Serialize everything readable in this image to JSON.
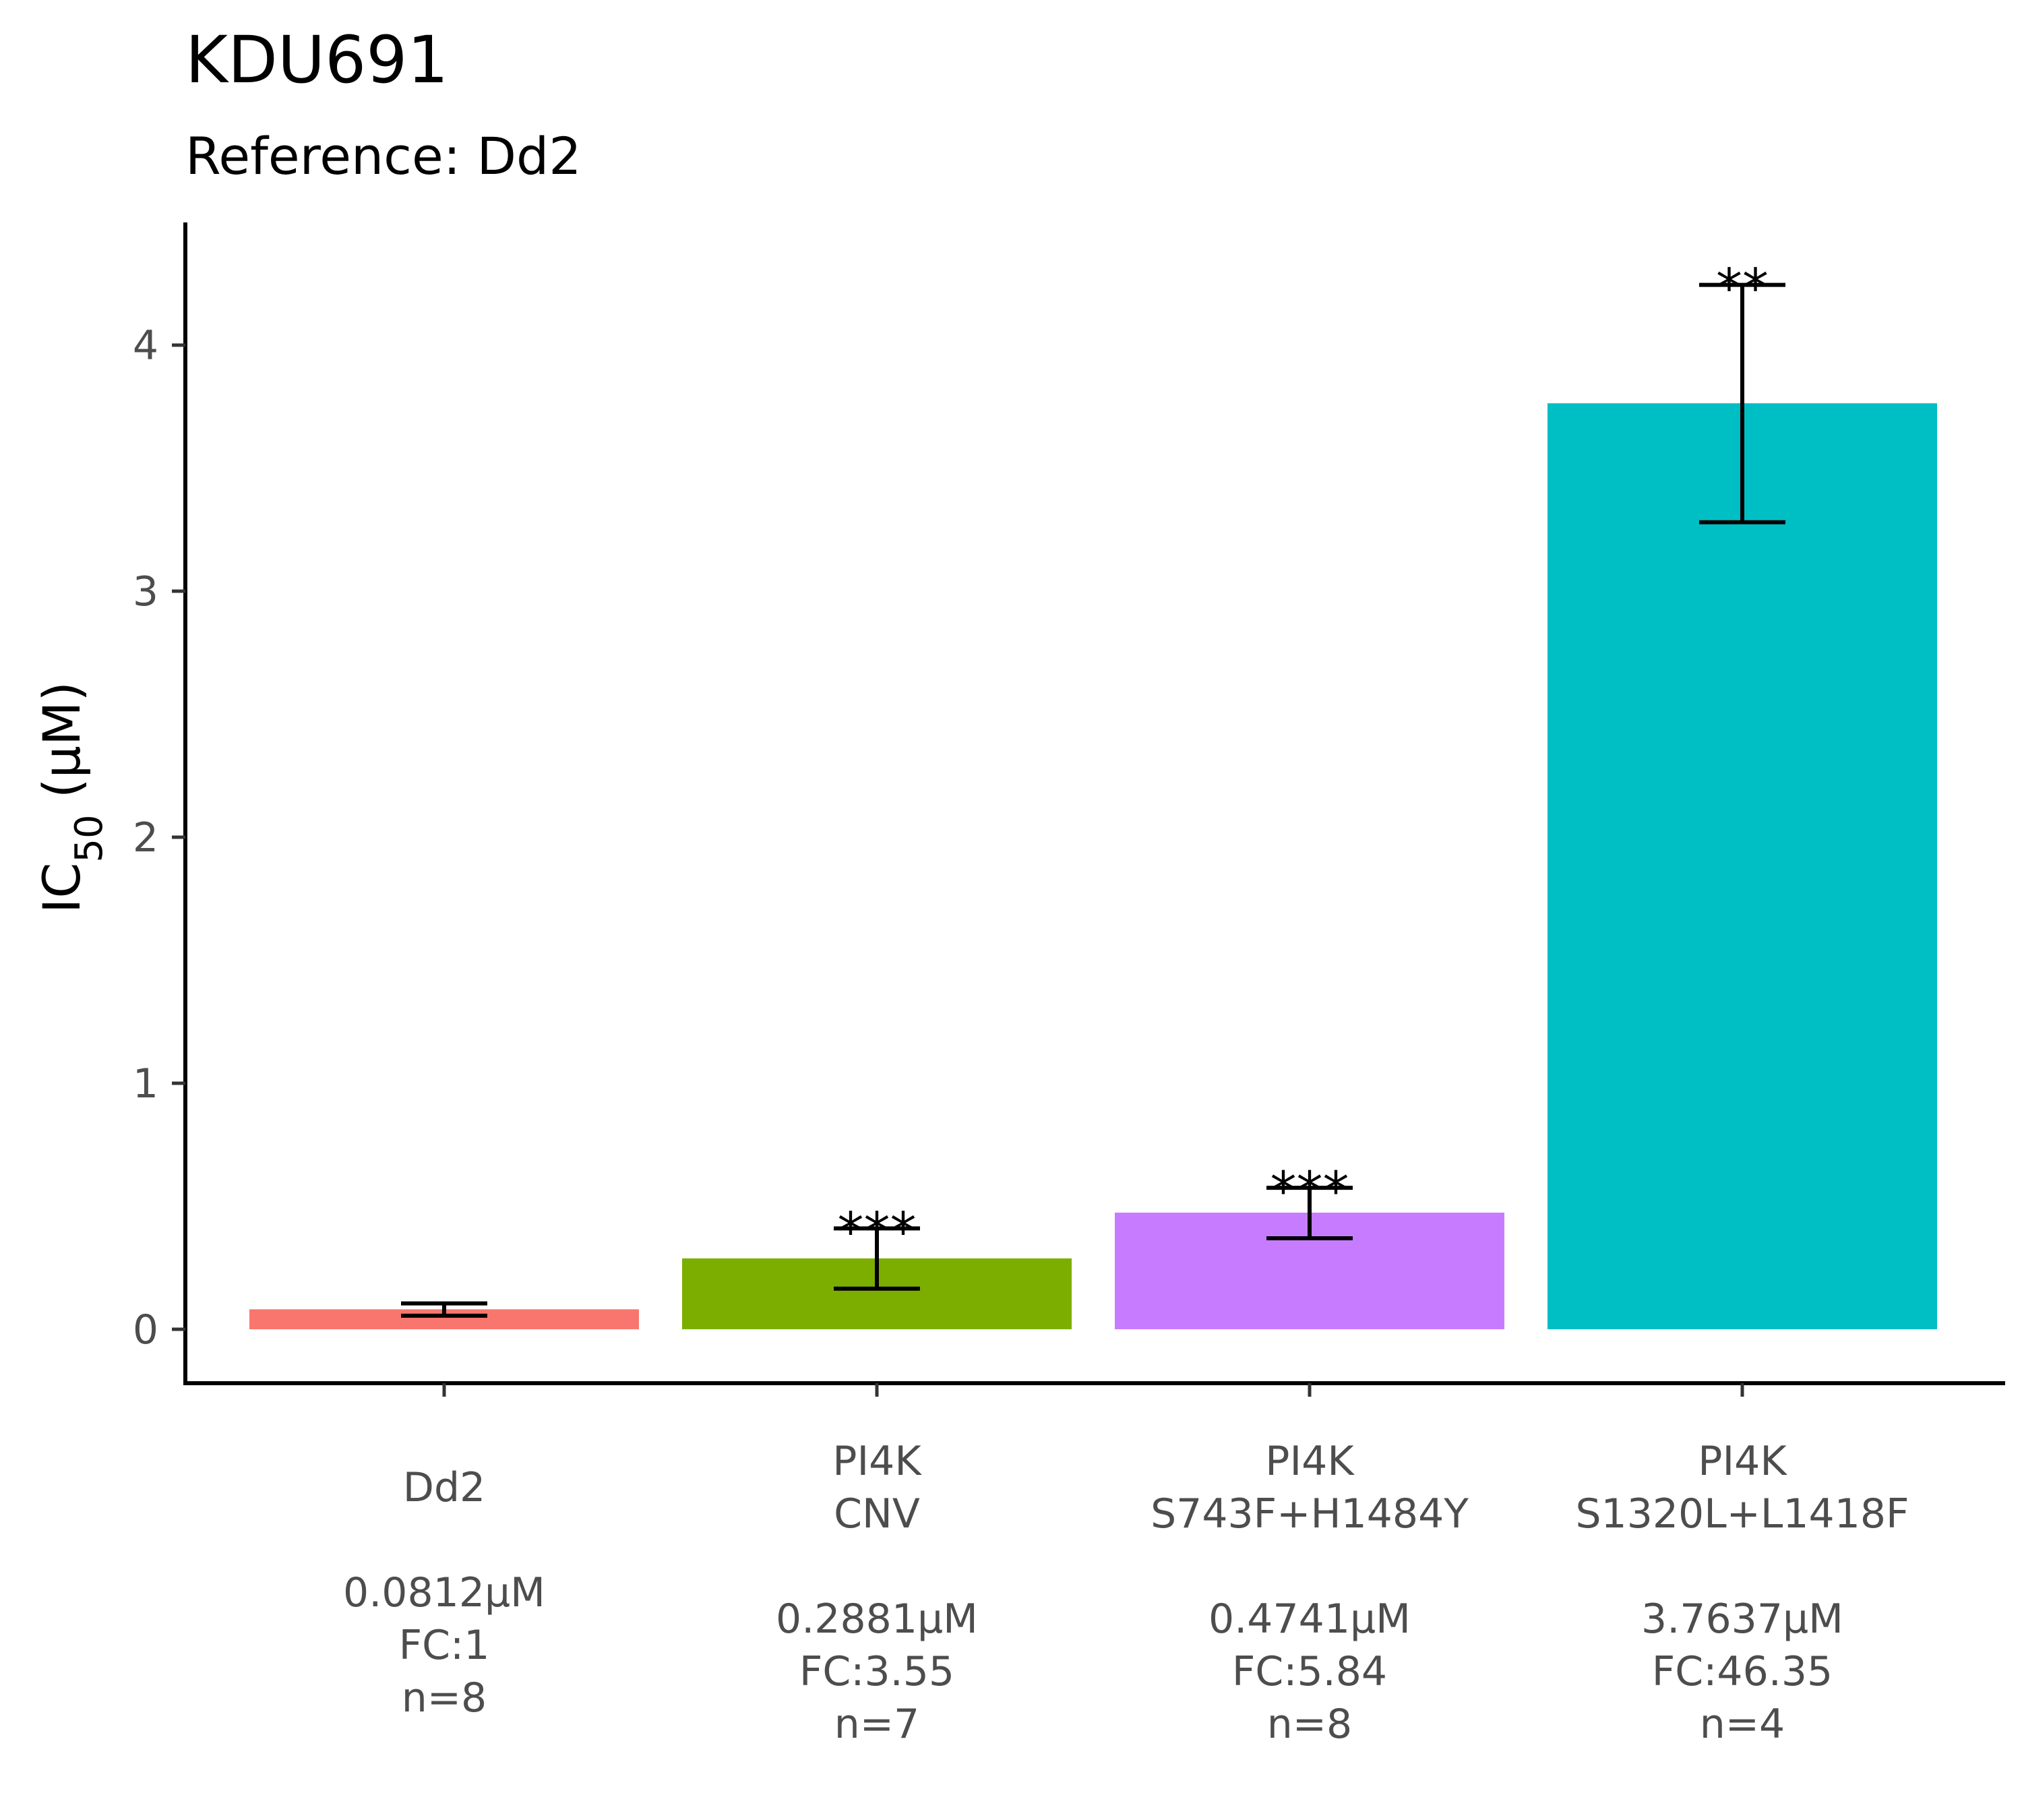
{
  "chart_data": {
    "type": "bar",
    "title": "KDU691",
    "subtitle": "Reference: Dd2",
    "ylabel_main": "IC",
    "ylabel_sub": "50",
    "ylabel_unit": " (μM)",
    "ylim": [
      -0.22,
      4.5
    ],
    "yticks": [
      0,
      1,
      2,
      3,
      4
    ],
    "grid": false,
    "legend": "none",
    "categories": [
      {
        "label_lines": [
          "Dd2"
        ],
        "stat_lines": [
          "0.0812μM",
          "FC:1",
          "n=8"
        ],
        "value": 0.0812,
        "err_low": 0.055,
        "err_high": 0.105,
        "significance": "",
        "color": "#F8766D"
      },
      {
        "label_lines": [
          "PI4K",
          "CNV"
        ],
        "stat_lines": [
          "0.2881μM",
          "FC:3.55",
          "n=7"
        ],
        "value": 0.2881,
        "err_low": 0.165,
        "err_high": 0.41,
        "significance": "***",
        "color": "#7CAE00"
      },
      {
        "label_lines": [
          "PI4K",
          "S743F+H1484Y"
        ],
        "stat_lines": [
          "0.4741μM",
          "FC:5.84",
          "n=8"
        ],
        "value": 0.4741,
        "err_low": 0.37,
        "err_high": 0.575,
        "significance": "***",
        "color": "#C77CFF"
      },
      {
        "label_lines": [
          "PI4K",
          "S1320L+L1418F"
        ],
        "stat_lines": [
          "3.7637μM",
          "FC:46.35",
          "n=4"
        ],
        "value": 3.7637,
        "err_low": 3.28,
        "err_high": 4.245,
        "significance": "**",
        "color": "#00BFC4"
      }
    ]
  }
}
